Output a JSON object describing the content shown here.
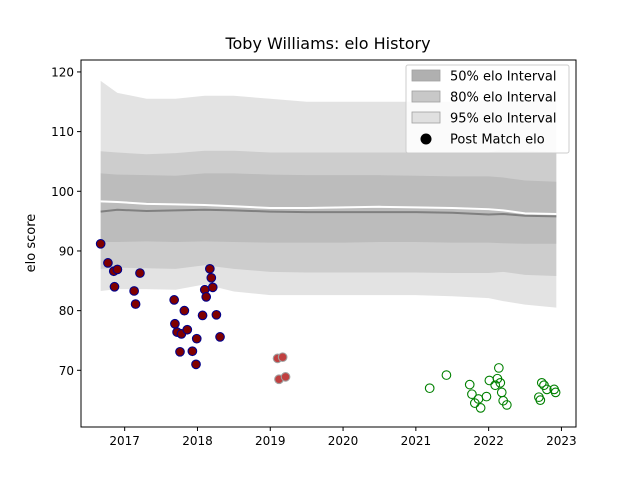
{
  "chart_data": {
    "type": "scatter",
    "title": "Toby Williams: elo History",
    "xlabel": "",
    "ylabel": "elo score",
    "xlim": [
      2016.4,
      2023.2
    ],
    "ylim": [
      60.5,
      122
    ],
    "x_ticks": [
      2017,
      2018,
      2019,
      2020,
      2021,
      2022,
      2023
    ],
    "y_ticks": [
      70,
      80,
      90,
      100,
      110,
      120
    ],
    "grid": false,
    "legend_position": "top-right",
    "legend": [
      {
        "label": "50% elo Interval",
        "kind": "band",
        "color": "#b0b0b0"
      },
      {
        "label": "80% elo Interval",
        "kind": "band",
        "color": "#c8c8c8"
      },
      {
        "label": "95% elo Interval",
        "kind": "band",
        "color": "#e0e0e0"
      },
      {
        "label": "Post Match elo",
        "kind": "marker",
        "color": "#000000"
      }
    ],
    "intervals": {
      "x": [
        2016.67,
        2016.9,
        2017.3,
        2017.7,
        2018.1,
        2018.5,
        2019.0,
        2019.5,
        2020.0,
        2020.5,
        2021.0,
        2021.5,
        2022.0,
        2022.2,
        2022.5,
        2022.93
      ],
      "mean": [
        96.6,
        96.9,
        96.7,
        96.8,
        96.9,
        96.8,
        96.6,
        96.5,
        96.5,
        96.5,
        96.5,
        96.4,
        96.1,
        96.2,
        95.9,
        95.8
      ],
      "upper_line": [
        98.3,
        98.2,
        97.9,
        97.8,
        97.7,
        97.5,
        97.2,
        97.2,
        97.3,
        97.4,
        97.3,
        97.2,
        97.0,
        96.8,
        96.3,
        96.2
      ],
      "band50": {
        "lower": [
          91.5,
          91.5,
          91.6,
          91.5,
          91.6,
          91.5,
          91.4,
          91.4,
          91.4,
          91.5,
          91.5,
          91.4,
          91.4,
          91.3,
          91.2,
          91.2
        ],
        "upper": [
          103.0,
          102.8,
          102.7,
          102.6,
          103.0,
          103.0,
          102.8,
          102.7,
          102.7,
          102.7,
          102.6,
          102.5,
          102.5,
          102.3,
          101.8,
          101.6
        ]
      },
      "band80": {
        "lower": [
          87.0,
          87.2,
          87.1,
          87.0,
          87.6,
          87.0,
          86.5,
          86.4,
          86.4,
          86.4,
          86.4,
          86.3,
          86.3,
          86.5,
          86.0,
          85.8
        ],
        "upper": [
          106.7,
          106.5,
          106.2,
          106.4,
          106.8,
          106.8,
          106.5,
          106.5,
          106.5,
          106.5,
          106.5,
          106.5,
          106.5,
          107.0,
          106.8,
          106.5
        ]
      },
      "band95": {
        "lower": [
          83.3,
          83.6,
          83.6,
          83.5,
          84.4,
          83.2,
          82.6,
          82.6,
          82.6,
          82.6,
          82.6,
          82.4,
          82.1,
          81.6,
          81.0,
          80.5
        ],
        "upper": [
          118.5,
          116.5,
          115.5,
          115.5,
          116.0,
          116.0,
          115.5,
          115.0,
          115.0,
          115.0,
          115.0,
          115.0,
          115.3,
          116.5,
          116.3,
          115.5
        ]
      }
    },
    "series": [
      {
        "style": "filled",
        "fill": "#800000",
        "edge": "#00008b",
        "points": [
          [
            2016.67,
            91.2
          ],
          [
            2016.77,
            88.0
          ],
          [
            2016.85,
            86.6
          ],
          [
            2016.86,
            84.0
          ],
          [
            2016.9,
            86.9
          ],
          [
            2017.13,
            83.3
          ],
          [
            2017.15,
            81.1
          ],
          [
            2017.21,
            86.3
          ],
          [
            2017.68,
            81.8
          ],
          [
            2017.69,
            77.8
          ],
          [
            2017.72,
            76.4
          ],
          [
            2017.76,
            73.1
          ],
          [
            2017.78,
            76.1
          ],
          [
            2017.82,
            80.0
          ],
          [
            2017.86,
            76.8
          ],
          [
            2017.93,
            73.2
          ],
          [
            2017.98,
            71.0
          ],
          [
            2017.99,
            75.3
          ],
          [
            2018.07,
            79.2
          ],
          [
            2018.1,
            83.5
          ],
          [
            2018.12,
            82.3
          ],
          [
            2018.17,
            87.0
          ],
          [
            2018.19,
            85.5
          ],
          [
            2018.21,
            83.9
          ],
          [
            2018.26,
            79.3
          ],
          [
            2018.31,
            75.6
          ]
        ]
      },
      {
        "style": "filled",
        "fill": "#c04040",
        "edge": "#a0a0a0",
        "points": [
          [
            2019.1,
            72.0
          ],
          [
            2019.12,
            68.5
          ],
          [
            2019.17,
            72.2
          ],
          [
            2019.21,
            68.9
          ]
        ]
      },
      {
        "style": "hollow",
        "fill": "none",
        "edge": "#008000",
        "points": [
          [
            2021.19,
            67.0
          ],
          [
            2021.42,
            69.2
          ],
          [
            2021.74,
            67.6
          ],
          [
            2021.77,
            66.0
          ],
          [
            2021.81,
            64.5
          ],
          [
            2021.86,
            65.2
          ],
          [
            2021.89,
            63.7
          ],
          [
            2021.97,
            65.6
          ],
          [
            2022.01,
            68.3
          ],
          [
            2022.09,
            67.5
          ],
          [
            2022.12,
            68.6
          ],
          [
            2022.14,
            70.4
          ],
          [
            2022.16,
            67.9
          ],
          [
            2022.18,
            66.3
          ],
          [
            2022.2,
            64.9
          ],
          [
            2022.25,
            64.2
          ],
          [
            2022.69,
            65.5
          ],
          [
            2022.71,
            65.0
          ],
          [
            2022.73,
            67.9
          ],
          [
            2022.76,
            67.5
          ],
          [
            2022.8,
            66.8
          ],
          [
            2022.9,
            66.8
          ],
          [
            2022.92,
            66.3
          ]
        ]
      }
    ]
  }
}
